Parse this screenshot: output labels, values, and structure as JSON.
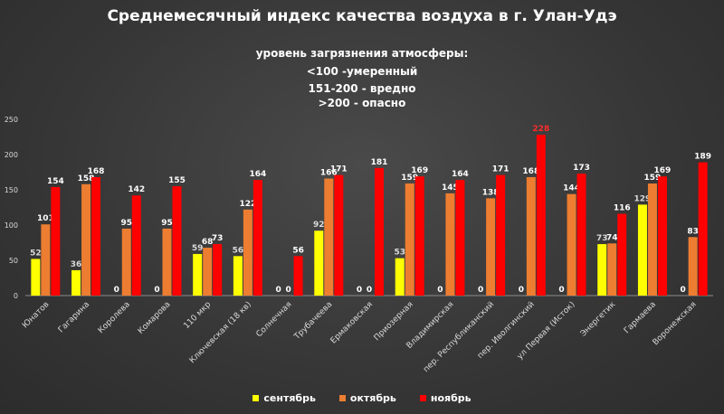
{
  "chart_data": {
    "type": "bar",
    "title": "Среднемесячный индекс качества воздуха в г. Улан-Удэ",
    "subtitle_lines": [
      "уровень загрязнения атмосферы:",
      "<100 -умеренный",
      "151-200 - вредно",
      ">200 - опасно"
    ],
    "categories": [
      "Юнатов",
      "Гагарина",
      "Королева",
      "Комарова",
      "110 мкр",
      "Ключевская (18 кв)",
      "Солнечная",
      "Трубачеева",
      "Ермаковская",
      "Приозерная",
      "Владимирская",
      "пер. Республиканский",
      "пер. Иволгинский",
      "ул Первая (Исток)",
      "Энергетик",
      "Гармаева",
      "Воронежская"
    ],
    "series": [
      {
        "name": "сентябрь",
        "color": "#ffff00",
        "values": [
          52,
          36,
          0,
          0,
          59,
          56,
          0,
          92,
          0,
          53,
          0,
          0,
          0,
          0,
          73,
          129,
          0
        ]
      },
      {
        "name": "октябрь",
        "color": "#ed7d31",
        "values": [
          101,
          158,
          95,
          95,
          68,
          122,
          0,
          166,
          0,
          159,
          145,
          138,
          168,
          144,
          74,
          159,
          83
        ]
      },
      {
        "name": "ноябрь",
        "color": "#ff0000",
        "values": [
          154,
          168,
          142,
          155,
          73,
          164,
          56,
          171,
          181,
          169,
          164,
          171,
          228,
          173,
          116,
          169,
          189
        ]
      }
    ],
    "yticks": [
      "0",
      "50",
      "100",
      "150",
      "200",
      "250"
    ],
    "ylim": [
      0,
      250
    ],
    "grid": false,
    "legend_position": "bottom",
    "highlight_color": "#ff2a2a"
  }
}
